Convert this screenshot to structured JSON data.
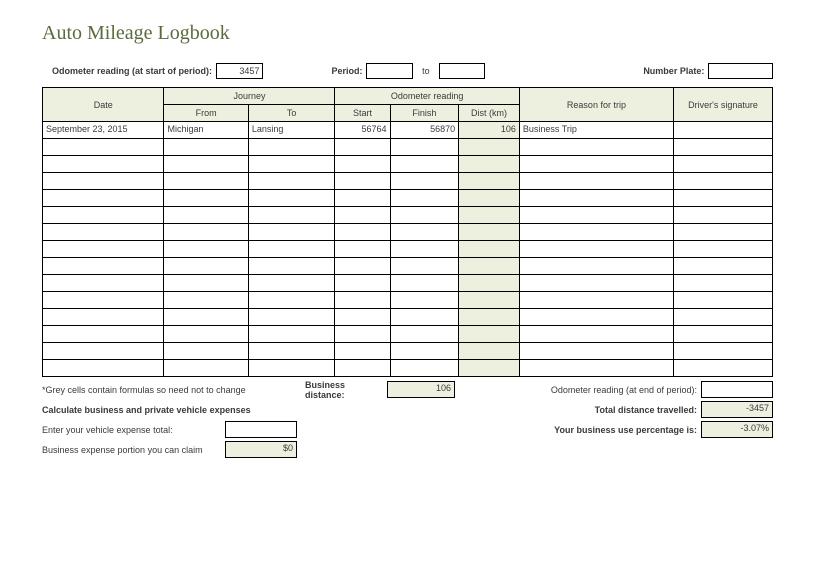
{
  "title": "Auto Mileage Logbook",
  "top": {
    "odometer_label": "Odometer reading (at start of period):",
    "odometer_value": "3457",
    "period_label": "Period:",
    "period_from": "",
    "period_mid": "to",
    "period_to": "",
    "plate_label": "Number Plate:",
    "plate_value": ""
  },
  "headers": {
    "date": "Date",
    "journey": "Journey",
    "from": "From",
    "to": "To",
    "odo": "Odometer reading",
    "start": "Start",
    "finish": "Finish",
    "dist": "Dist (km)",
    "reason": "Reason for trip",
    "sig": "Driver's signature"
  },
  "rows": [
    {
      "date": "September 23, 2015",
      "from": "Michigan",
      "to": "Lansing",
      "start": "56764",
      "finish": "56870",
      "dist": "106",
      "reason": "Business Trip",
      "sig": ""
    },
    {
      "date": "",
      "from": "",
      "to": "",
      "start": "",
      "finish": "",
      "dist": "",
      "reason": "",
      "sig": ""
    },
    {
      "date": "",
      "from": "",
      "to": "",
      "start": "",
      "finish": "",
      "dist": "",
      "reason": "",
      "sig": ""
    },
    {
      "date": "",
      "from": "",
      "to": "",
      "start": "",
      "finish": "",
      "dist": "",
      "reason": "",
      "sig": ""
    },
    {
      "date": "",
      "from": "",
      "to": "",
      "start": "",
      "finish": "",
      "dist": "",
      "reason": "",
      "sig": ""
    },
    {
      "date": "",
      "from": "",
      "to": "",
      "start": "",
      "finish": "",
      "dist": "",
      "reason": "",
      "sig": ""
    },
    {
      "date": "",
      "from": "",
      "to": "",
      "start": "",
      "finish": "",
      "dist": "",
      "reason": "",
      "sig": ""
    },
    {
      "date": "",
      "from": "",
      "to": "",
      "start": "",
      "finish": "",
      "dist": "",
      "reason": "",
      "sig": ""
    },
    {
      "date": "",
      "from": "",
      "to": "",
      "start": "",
      "finish": "",
      "dist": "",
      "reason": "",
      "sig": ""
    },
    {
      "date": "",
      "from": "",
      "to": "",
      "start": "",
      "finish": "",
      "dist": "",
      "reason": "",
      "sig": ""
    },
    {
      "date": "",
      "from": "",
      "to": "",
      "start": "",
      "finish": "",
      "dist": "",
      "reason": "",
      "sig": ""
    },
    {
      "date": "",
      "from": "",
      "to": "",
      "start": "",
      "finish": "",
      "dist": "",
      "reason": "",
      "sig": ""
    },
    {
      "date": "",
      "from": "",
      "to": "",
      "start": "",
      "finish": "",
      "dist": "",
      "reason": "",
      "sig": ""
    },
    {
      "date": "",
      "from": "",
      "to": "",
      "start": "",
      "finish": "",
      "dist": "",
      "reason": "",
      "sig": ""
    },
    {
      "date": "",
      "from": "",
      "to": "",
      "start": "",
      "finish": "",
      "dist": "",
      "reason": "",
      "sig": ""
    }
  ],
  "bottom": {
    "note": "*Grey cells contain formulas so need not to change",
    "calc_heading": "Calculate business and private vehicle expenses",
    "enter_expense_label": "Enter your vehicle expense total:",
    "enter_expense_value": "",
    "claim_label": "Business expense portion you can claim",
    "claim_value": "$0",
    "biz_dist_label": "Business distance:",
    "biz_dist_value": "106",
    "odo_end_label": "Odometer reading (at end of period):",
    "odo_end_value": "",
    "total_dist_label": "Total distance travelled:",
    "total_dist_value": "-3457",
    "biz_pct_label": "Your business use percentage is:",
    "biz_pct_value": "-3.07%"
  },
  "style": {
    "border_color": "#000000",
    "header_bg": "#eef0df",
    "title_color": "#5a6b3d",
    "bg": "#ffffff",
    "font_size_body": 9,
    "font_size_title": 20
  }
}
